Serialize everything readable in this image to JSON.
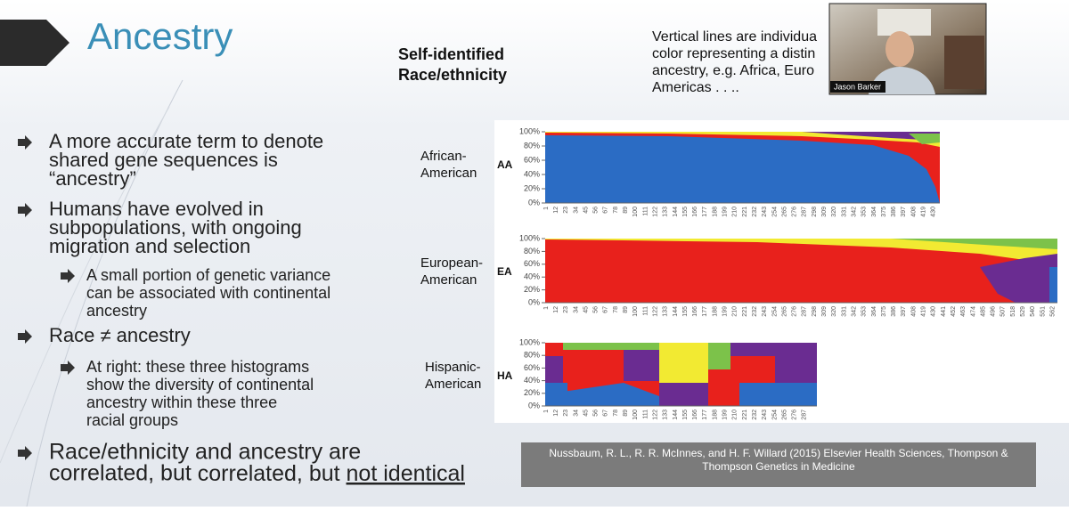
{
  "slide": {
    "title": "Ancestry",
    "bullets": [
      {
        "level": 1,
        "lines": [
          "A more accurate term to denote",
          "shared gene sequences is",
          "“ancestry”"
        ]
      },
      {
        "level": 1,
        "lines": [
          "Humans have evolved in",
          "subpopulations, with ongoing",
          "migration and selection"
        ]
      },
      {
        "level": 2,
        "lines": [
          "A small portion of genetic variance",
          "can be associated with continental",
          "ancestry"
        ]
      },
      {
        "level": 1,
        "lines": [
          "Race ≠ ancestry"
        ]
      },
      {
        "level": 2,
        "lines": [
          "At right: these three histograms",
          "show the diversity of continental",
          "ancestry within these three",
          "racial groups"
        ]
      },
      {
        "level": 1,
        "lines": [
          "Race/ethnicity and ancestry are",
          "correlated, but "
        ],
        "underlined": "not identical"
      }
    ]
  },
  "header": {
    "lines": [
      "Self-identified",
      "Race/ethnicity"
    ]
  },
  "note": {
    "lines": [
      "Vertical lines are individua",
      "color representing a distin",
      "ancestry, e.g. Africa, Euro",
      "Americas . . .."
    ]
  },
  "video": {
    "name": "Jason Barker"
  },
  "figure": {
    "panels": [
      {
        "label": [
          "African-",
          "American"
        ],
        "code": "AA",
        "yticks": [
          "100%",
          "80%",
          "60%",
          "40%",
          "20%",
          "0%"
        ],
        "xticks": [
          1,
          12,
          23,
          34,
          45,
          56,
          67,
          78,
          89,
          100,
          111,
          122,
          133,
          144,
          155,
          166,
          177,
          188,
          199,
          210,
          221,
          232,
          243,
          254,
          265,
          276,
          287,
          298,
          309,
          320,
          331,
          342,
          353,
          364,
          375,
          386,
          397,
          408,
          419,
          430
        ]
      },
      {
        "label": [
          "European-",
          "American"
        ],
        "code": "EA",
        "yticks": [
          "100%",
          "80%",
          "60%",
          "40%",
          "20%",
          "0%"
        ],
        "xticks": [
          1,
          12,
          23,
          34,
          45,
          56,
          67,
          78,
          89,
          100,
          111,
          122,
          133,
          144,
          155,
          166,
          177,
          188,
          199,
          210,
          221,
          232,
          243,
          254,
          265,
          276,
          287,
          298,
          309,
          320,
          331,
          342,
          353,
          364,
          375,
          386,
          397,
          408,
          419,
          430,
          441,
          452,
          463,
          474,
          485,
          496,
          507,
          518,
          529,
          540,
          551,
          562
        ]
      },
      {
        "label": [
          "Hispanic-",
          "American"
        ],
        "code": "HA",
        "yticks": [
          "100%",
          "80%",
          "60%",
          "40%",
          "20%",
          "0%"
        ],
        "xticks": [
          1,
          12,
          23,
          34,
          45,
          56,
          67,
          78,
          89,
          100,
          111,
          122,
          133,
          144,
          155,
          166,
          177,
          188,
          199,
          210,
          221,
          232,
          243,
          254,
          265,
          276,
          287
        ]
      }
    ]
  },
  "citation": {
    "lines": [
      "Nussbaum, R. L., R. R. McInnes, and H. F. Willard (2015) Elsevier Health Sciences, Thompson &",
      "Thompson Genetics in Medicine"
    ]
  }
}
